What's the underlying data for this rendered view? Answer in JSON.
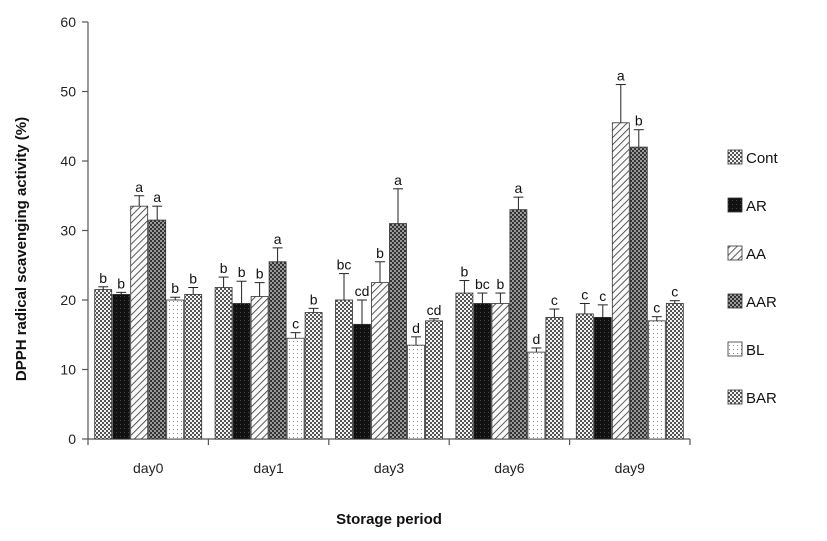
{
  "chart_data": {
    "type": "bar",
    "xlabel": "Storage period",
    "ylabel": "DPPH radical scavenging activity (%)",
    "ylim": [
      0,
      60
    ],
    "yticks": [
      0,
      10,
      20,
      30,
      40,
      50,
      60
    ],
    "categories": [
      "day0",
      "day1",
      "day3",
      "day6",
      "day9"
    ],
    "legend_position": "right",
    "series": [
      {
        "name": "Cont",
        "pattern": "checker",
        "values": [
          21.5,
          21.8,
          20.0,
          21.0,
          18.0
        ],
        "errors": [
          0.4,
          1.5,
          3.8,
          1.8,
          1.5
        ],
        "labels": [
          "b",
          "b",
          "bc",
          "b",
          "c"
        ]
      },
      {
        "name": "AR",
        "pattern": "dark",
        "values": [
          20.8,
          19.5,
          16.5,
          19.5,
          17.5
        ],
        "errors": [
          0.3,
          3.2,
          3.5,
          1.5,
          1.8
        ],
        "labels": [
          "b",
          "b",
          "cd",
          "bc",
          "c"
        ]
      },
      {
        "name": "AA",
        "pattern": "diagonal",
        "values": [
          33.5,
          20.5,
          22.5,
          19.5,
          45.5
        ],
        "errors": [
          1.5,
          2.0,
          3.0,
          1.5,
          5.5
        ],
        "labels": [
          "a",
          "b",
          "b",
          "b",
          "a"
        ]
      },
      {
        "name": "AAR",
        "pattern": "dark-checker",
        "values": [
          31.5,
          25.5,
          31.0,
          33.0,
          42.0
        ],
        "errors": [
          2.0,
          2.0,
          5.0,
          1.8,
          2.5
        ],
        "labels": [
          "a",
          "a",
          "a",
          "a",
          "b"
        ]
      },
      {
        "name": "BL",
        "pattern": "dots",
        "values": [
          20.0,
          14.5,
          13.5,
          12.5,
          17.0
        ],
        "errors": [
          0.4,
          0.8,
          1.2,
          0.6,
          0.6
        ],
        "labels": [
          "b",
          "c",
          "d",
          "d",
          "c"
        ]
      },
      {
        "name": "BAR",
        "pattern": "checker",
        "values": [
          20.8,
          18.2,
          17.0,
          17.5,
          19.5
        ],
        "errors": [
          1.0,
          0.6,
          0.3,
          1.2,
          0.4
        ],
        "labels": [
          "b",
          "b",
          "cd",
          "c",
          "c"
        ]
      }
    ]
  }
}
